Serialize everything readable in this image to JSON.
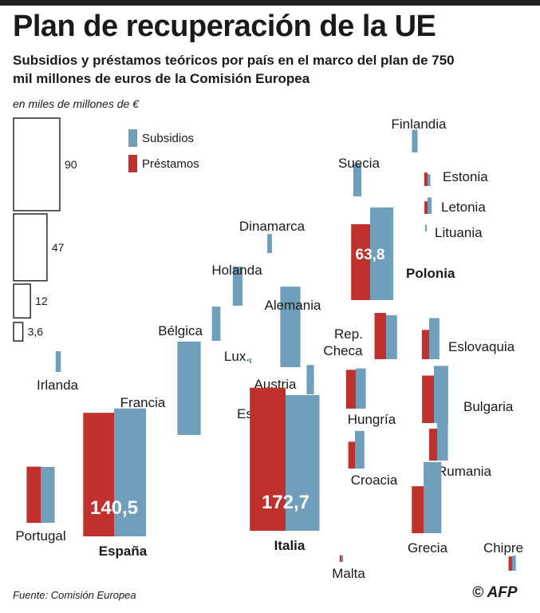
{
  "header": {
    "title": "Plan de recuperación de la UE",
    "subtitle": "Subsidios y préstamos teóricos por país en el marco del plan de 750 mil millones de euros de la Comisión Europea",
    "units": "en miles de millones de €"
  },
  "footer": {
    "source": "Fuente: Comisión Europea",
    "credit": "© AFP"
  },
  "colors": {
    "subsidios": "#6f9fba",
    "prestamos": "#c0302c",
    "scale_stroke": "#1a1a1a"
  },
  "chart_data": {
    "type": "proportional-area-cartogram",
    "title": "Plan de recuperación de la UE",
    "units": "en miles de millones de €",
    "legend": [
      {
        "key": "subsidios",
        "label": "Subsidios"
      },
      {
        "key": "prestamos",
        "label": "Préstamos"
      }
    ],
    "scale": [
      {
        "value": 90,
        "label": "90"
      },
      {
        "value": 47,
        "label": "47"
      },
      {
        "value": 12,
        "label": "12"
      },
      {
        "value": 3.6,
        "label": "3,6"
      }
    ],
    "countries": [
      {
        "name": "Finlandia",
        "subsidios": 2.3,
        "prestamos": 0
      },
      {
        "name": "Suecia",
        "subsidios": 4.7,
        "prestamos": 0
      },
      {
        "name": "Estonia",
        "subsidios": 0.6,
        "prestamos": 0.8
      },
      {
        "name": "Letonia",
        "subsidios": 1.2,
        "prestamos": 0.7
      },
      {
        "name": "Lituania",
        "subsidios": 0.2,
        "prestamos": 0
      },
      {
        "name": "Dinamarca",
        "subsidios": 1.6,
        "prestamos": 0
      },
      {
        "name": "Polonia",
        "subsidios": 38.2,
        "prestamos": 25.6,
        "total_label": "63,8"
      },
      {
        "name": "Holanda",
        "subsidios": 6.8,
        "prestamos": 0
      },
      {
        "name": "Alemania",
        "subsidios": 28.8,
        "prestamos": 0
      },
      {
        "name": "Bélgica",
        "subsidios": 5.2,
        "prestamos": 0
      },
      {
        "name": "Lux.",
        "subsidios": 0.1,
        "prestamos": 0
      },
      {
        "name": "Rep. Checa",
        "subsidios": 8.6,
        "prestamos": 9.5
      },
      {
        "name": "Eslovaquia",
        "subsidios": 7.5,
        "prestamos": 3.8
      },
      {
        "name": "Irlanda",
        "subsidios": 1.9,
        "prestamos": 0
      },
      {
        "name": "Austria",
        "subsidios": 3.8,
        "prestamos": 0
      },
      {
        "name": "Hungría",
        "subsidios": 7.2,
        "prestamos": 6.7
      },
      {
        "name": "Bulgaria",
        "subsidios": 14.5,
        "prestamos": 10.0
      },
      {
        "name": "Francia",
        "subsidios": 38.8,
        "prestamos": 0
      },
      {
        "name": "Eslovenia",
        "subsidios": 2.3,
        "prestamos": 2.9
      },
      {
        "name": "Rumania",
        "subsidios": 8.4,
        "prestamos": 4.5
      },
      {
        "name": "Croacia",
        "subsidios": 6.3,
        "prestamos": 3.2
      },
      {
        "name": "Portugal",
        "subsidios": 13.9,
        "prestamos": 14.0
      },
      {
        "name": "España",
        "subsidios": 72.7,
        "prestamos": 67.8,
        "total_label": "140,5"
      },
      {
        "name": "Italia",
        "subsidios": 81.8,
        "prestamos": 90.9,
        "total_label": "172,7"
      },
      {
        "name": "Grecia",
        "subsidios": 22.5,
        "prestamos": 9.8
      },
      {
        "name": "Chipre",
        "subsidios": 1.0,
        "prestamos": 0.9
      },
      {
        "name": "Malta",
        "subsidios": 0.2,
        "prestamos": 0.2
      }
    ]
  }
}
